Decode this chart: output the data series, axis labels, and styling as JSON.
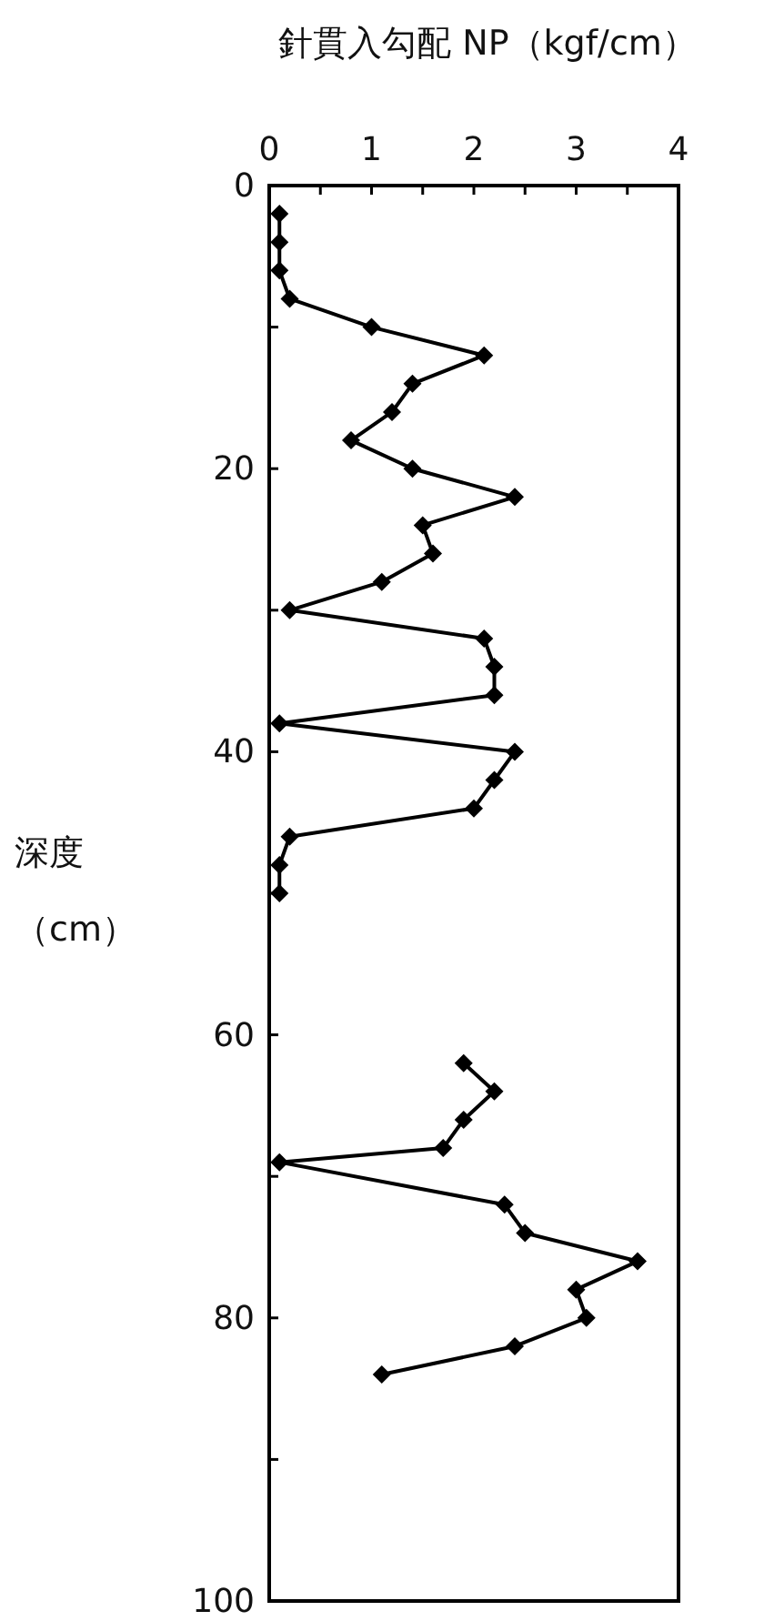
{
  "chart_data": {
    "type": "line",
    "xlabel": "針貫入勾配 NP（kgf/cm）",
    "ylabel": "深度（cm）",
    "xlim": [
      0,
      4
    ],
    "xticks": [
      0,
      {
        "value": 0.5,
        "label": null
      },
      1,
      {
        "value": 1.5,
        "label": null
      },
      2,
      {
        "value": 2.5,
        "label": null
      },
      3,
      {
        "value": 3.5,
        "label": null
      },
      4
    ],
    "ylim": [
      100,
      0
    ],
    "yticks": [
      0,
      {
        "value": 10,
        "label": null
      },
      20,
      {
        "value": 30,
        "label": null
      },
      40,
      {
        "value": 50,
        "label": null
      },
      60,
      {
        "value": 70,
        "label": null
      },
      80,
      {
        "value": 90,
        "label": null
      },
      100
    ],
    "marker": "diamond",
    "line_style": "solid",
    "grid": false,
    "tick_labels": "xy",
    "series": [
      {
        "color": "#000000",
        "x": [
          0.1,
          0.1,
          0.1,
          0.2,
          1.0,
          2.1,
          1.4,
          1.2,
          0.8,
          1.4,
          2.4,
          1.5,
          1.6,
          1.1,
          0.2,
          2.1,
          2.2,
          2.2,
          0.1,
          2.4,
          2.2,
          2.0,
          0.2,
          0.1,
          0.1
        ],
        "values": [
          2,
          4,
          6,
          8,
          10,
          12,
          14,
          16,
          18,
          20,
          22,
          24,
          26,
          28,
          30,
          32,
          34,
          36,
          38,
          40,
          42,
          44,
          46,
          48,
          50
        ]
      },
      {
        "color": "#000000",
        "x": [
          1.9,
          2.2,
          1.9,
          1.7,
          0.1,
          2.3,
          2.5,
          3.6,
          3.0,
          3.1,
          2.4,
          1.1
        ],
        "values": [
          62,
          64,
          66,
          68,
          69,
          72,
          74,
          76,
          78,
          80,
          82,
          84
        ]
      }
    ]
  }
}
